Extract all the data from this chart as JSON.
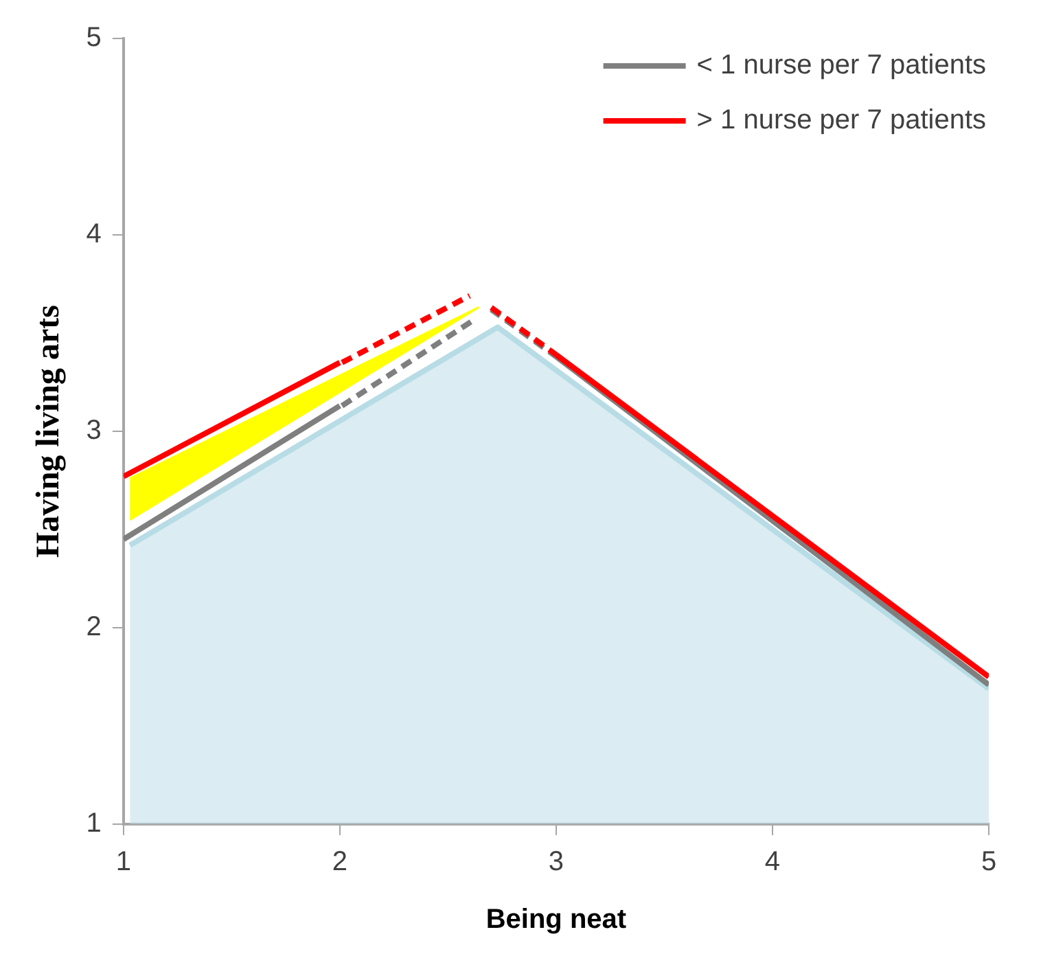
{
  "chart_data": {
    "type": "line",
    "xlabel": "Being neat",
    "ylabel": "Having living arts",
    "xlim": [
      1,
      5
    ],
    "ylim": [
      1,
      5
    ],
    "xticks": [
      1,
      2,
      3,
      4,
      5
    ],
    "yticks": [
      1,
      2,
      3,
      4,
      5
    ],
    "grid": false,
    "legend": "top right",
    "marker": "none",
    "series": [
      {
        "type": "area",
        "color": "#b7dce6",
        "x": [
          1.03,
          2.73,
          5
        ],
        "values": [
          2.42,
          3.53,
          1.69
        ]
      },
      {
        "type": "area",
        "color": "#ffff00",
        "x": [
          1.03,
          2.64,
          1.03
        ],
        "values": [
          2.76,
          3.63,
          2.55
        ]
      },
      {
        "color": "#7f7f7f",
        "x": [
          2.01,
          2.61,
          2.65,
          2.7,
          3
        ],
        "values": [
          3.13,
          3.56,
          null,
          3.62,
          3.38
        ],
        "line_style": "dashed"
      },
      {
        "color": "#ff0000",
        "x": [
          2.01,
          2.6,
          2.65,
          2.7,
          3
        ],
        "values": [
          3.35,
          3.69,
          null,
          3.63,
          3.39
        ],
        "line_style": "dashed"
      },
      {
        "name": "< 1 nurse per 7 patients",
        "color": "#7f7f7f",
        "x": [
          1,
          2,
          2.5,
          3,
          5
        ],
        "values": [
          2.45,
          3.13,
          null,
          3.38,
          1.71
        ],
        "line_style": "solid"
      },
      {
        "name": "> 1 nurse per 7 patients",
        "color": "#ff0000",
        "x": [
          1,
          2,
          2.5,
          3,
          5
        ],
        "values": [
          2.77,
          3.35,
          null,
          3.39,
          1.75
        ],
        "line_style": "solid"
      }
    ]
  }
}
